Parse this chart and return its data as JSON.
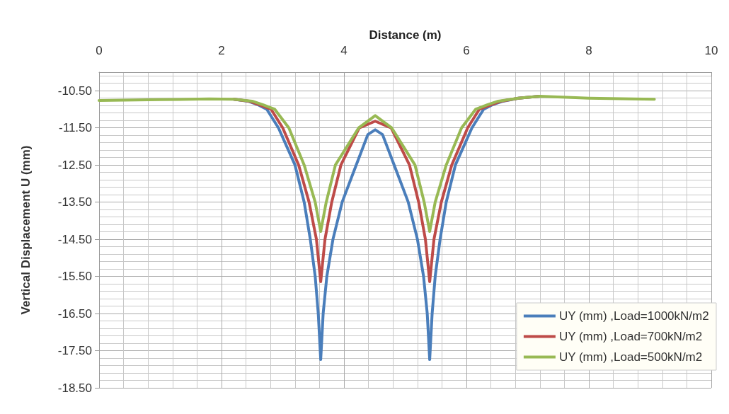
{
  "chart_data": {
    "type": "line",
    "xlabel": "Distance (m)",
    "ylabel": "Vertical Displacement U (mm)",
    "xlim": [
      0,
      10
    ],
    "xticks": [
      0,
      2,
      4,
      6,
      8,
      10
    ],
    "ylim": [
      -18.5,
      -10
    ],
    "yticks": [
      {
        "value": -18.5,
        "label": "-18.50"
      },
      {
        "value": -17.5,
        "label": "-17.50"
      },
      {
        "value": -16.5,
        "label": "-16.50"
      },
      {
        "value": -15.5,
        "label": "-15.50"
      },
      {
        "value": -14.5,
        "label": "-14.50"
      },
      {
        "value": -13.5,
        "label": "-13.50"
      },
      {
        "value": -12.5,
        "label": "-12.50"
      },
      {
        "value": -11.5,
        "label": "-11.50"
      },
      {
        "value": -10.5,
        "label": "-10.50"
      }
    ],
    "grid": true,
    "legend": "bottom right",
    "marker": "none",
    "line_style": "solid",
    "series": [
      {
        "name": "UY (mm) ,Load=1000kN/m2",
        "color": "#4a7ebb",
        "x": [
          2.2,
          2.43,
          2.6,
          2.74,
          2.93,
          3.2,
          3.35,
          3.45,
          3.53,
          3.58,
          3.62,
          3.66,
          3.72,
          3.82,
          3.97,
          4.2,
          4.39,
          4.51,
          4.63,
          4.82,
          5.05,
          5.2,
          5.3,
          5.36,
          5.4,
          5.44,
          5.49,
          5.57,
          5.67,
          5.82,
          6.09,
          6.28,
          6.42,
          6.6,
          6.85,
          7.2
        ],
        "values": [
          -10.73,
          -10.78,
          -10.88,
          -11.0,
          -11.5,
          -12.5,
          -13.5,
          -14.5,
          -15.5,
          -16.5,
          -17.74,
          -16.5,
          -15.5,
          -14.5,
          -13.5,
          -12.5,
          -11.68,
          -11.55,
          -11.68,
          -12.5,
          -13.5,
          -14.5,
          -15.5,
          -16.5,
          -17.74,
          -16.5,
          -15.5,
          -14.5,
          -13.5,
          -12.5,
          -11.5,
          -11.0,
          -10.88,
          -10.78,
          -10.7,
          -10.65
        ]
      },
      {
        "name": "UY (mm) ,Load=700kN/m2",
        "color": "#be4b48",
        "x": [
          2.2,
          2.45,
          2.62,
          2.81,
          3.0,
          3.26,
          3.43,
          3.55,
          3.62,
          3.69,
          3.8,
          3.95,
          4.25,
          4.51,
          4.77,
          5.07,
          5.22,
          5.33,
          5.4,
          5.47,
          5.59,
          5.76,
          6.02,
          6.21,
          6.4,
          6.57,
          6.85,
          7.2
        ],
        "values": [
          -10.73,
          -10.78,
          -10.88,
          -11.0,
          -11.5,
          -12.5,
          -13.5,
          -14.5,
          -15.64,
          -14.5,
          -13.5,
          -12.5,
          -11.5,
          -11.32,
          -11.5,
          -12.5,
          -13.5,
          -14.5,
          -15.64,
          -14.5,
          -13.5,
          -12.5,
          -11.5,
          -11.0,
          -10.88,
          -10.78,
          -10.7,
          -10.65
        ]
      },
      {
        "name": "UY (mm) ,Load=500kN/m2",
        "color": "#98b954",
        "x": [
          0,
          1,
          1.8,
          2.2,
          2.5,
          2.68,
          2.87,
          3.1,
          3.35,
          3.53,
          3.62,
          3.71,
          3.86,
          4.24,
          4.51,
          4.78,
          5.16,
          5.31,
          5.4,
          5.49,
          5.67,
          5.92,
          6.15,
          6.34,
          6.52,
          6.85,
          7.2,
          8,
          9.07
        ],
        "values": [
          -10.76,
          -10.74,
          -10.72,
          -10.73,
          -10.78,
          -10.88,
          -11.0,
          -11.5,
          -12.5,
          -13.5,
          -14.29,
          -13.5,
          -12.5,
          -11.5,
          -11.17,
          -11.5,
          -12.5,
          -13.5,
          -14.29,
          -13.5,
          -12.5,
          -11.5,
          -11.0,
          -10.88,
          -10.78,
          -10.7,
          -10.65,
          -10.7,
          -10.73
        ]
      }
    ]
  }
}
